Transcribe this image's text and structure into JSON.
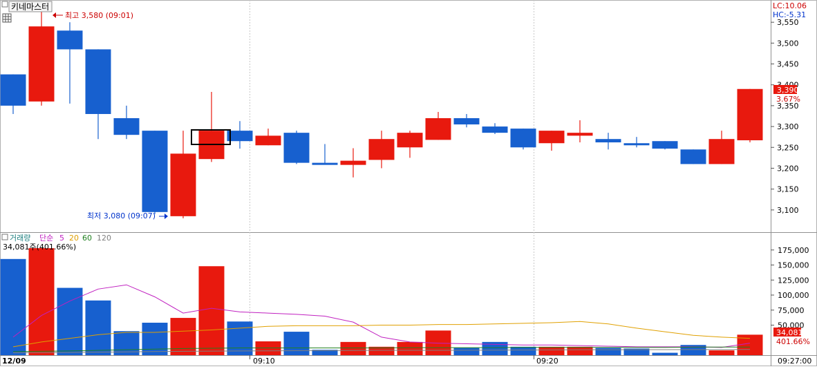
{
  "title": "키네마스터",
  "lc_label": "LC:10.06",
  "hc_label": "HC:-5.31",
  "high_annotation": "최고 3,580 (09:01)",
  "low_annotation": "최저 3,080 (09:07)",
  "current_price_label": "3,390",
  "current_change_label": "3.67%",
  "volume_legend": {
    "volume": "거래량",
    "simple": "단순",
    "ma5": "5",
    "ma20": "20",
    "ma60": "60",
    "ma120": "120"
  },
  "volume_info": "34,081주(401.66%)",
  "current_volume_label": "34,081",
  "current_volume_pct_label": "401.66%",
  "colors": {
    "up": "#e8190e",
    "down": "#1760cf",
    "ma5": "#c020c0",
    "ma20": "#e0a000",
    "ma60": "#208020",
    "ma120": "#808080",
    "axis_text_up": "#cc0000",
    "axis_text_down": "#0033cc"
  },
  "time_labels": {
    "date": "12/09",
    "t1": "09:10",
    "t2": "09:20",
    "end": "09:27:00"
  },
  "chart_data": [
    {
      "type": "candlestick",
      "y_ticks": [
        3550,
        3500,
        3450,
        3400,
        3350,
        3300,
        3250,
        3200,
        3150,
        3100
      ],
      "y_tick_labels": [
        "3,550",
        "3,500",
        "3,450",
        "3,400",
        "3,350",
        "3,300",
        "3,250",
        "3,200",
        "3,150",
        "3,100"
      ],
      "ylim": [
        3050,
        3600
      ],
      "candles": [
        {
          "o": 3425,
          "h": 3425,
          "l": 3330,
          "c": 3350
        },
        {
          "o": 3360,
          "h": 3580,
          "l": 3350,
          "c": 3540
        },
        {
          "o": 3530,
          "h": 3550,
          "l": 3355,
          "c": 3485
        },
        {
          "o": 3485,
          "h": 3485,
          "l": 3270,
          "c": 3330
        },
        {
          "o": 3320,
          "h": 3350,
          "l": 3270,
          "c": 3280
        },
        {
          "o": 3290,
          "h": 3290,
          "l": 3090,
          "c": 3095
        },
        {
          "o": 3085,
          "h": 3290,
          "l": 3080,
          "c": 3235
        },
        {
          "o": 3222,
          "h": 3383,
          "l": 3215,
          "c": 3290
        },
        {
          "o": 3290,
          "h": 3313,
          "l": 3247,
          "c": 3265
        },
        {
          "o": 3255,
          "h": 3295,
          "l": 3255,
          "c": 3278
        },
        {
          "o": 3285,
          "h": 3290,
          "l": 3210,
          "c": 3213
        },
        {
          "o": 3213,
          "h": 3258,
          "l": 3210,
          "c": 3208
        },
        {
          "o": 3208,
          "h": 3248,
          "l": 3178,
          "c": 3218
        },
        {
          "o": 3220,
          "h": 3290,
          "l": 3200,
          "c": 3270
        },
        {
          "o": 3250,
          "h": 3290,
          "l": 3225,
          "c": 3285
        },
        {
          "o": 3268,
          "h": 3335,
          "l": 3268,
          "c": 3320
        },
        {
          "o": 3320,
          "h": 3330,
          "l": 3298,
          "c": 3305
        },
        {
          "o": 3300,
          "h": 3308,
          "l": 3282,
          "c": 3285
        },
        {
          "o": 3295,
          "h": 3295,
          "l": 3245,
          "c": 3250
        },
        {
          "o": 3260,
          "h": 3290,
          "l": 3242,
          "c": 3290
        },
        {
          "o": 3278,
          "h": 3315,
          "l": 3262,
          "c": 3285
        },
        {
          "o": 3270,
          "h": 3285,
          "l": 3245,
          "c": 3262
        },
        {
          "o": 3260,
          "h": 3275,
          "l": 3250,
          "c": 3255
        },
        {
          "o": 3265,
          "h": 3265,
          "l": 3245,
          "c": 3247
        },
        {
          "o": 3245,
          "h": 3245,
          "l": 3210,
          "c": 3210
        },
        {
          "o": 3210,
          "h": 3290,
          "l": 3210,
          "c": 3270
        },
        {
          "o": 3267,
          "h": 3390,
          "l": 3262,
          "c": 3390
        }
      ]
    },
    {
      "type": "bar",
      "y_ticks": [
        175000,
        150000,
        125000,
        100000,
        75000,
        50000
      ],
      "y_tick_labels": [
        "175,000",
        "150,000",
        "125,000",
        "100,000",
        "75,000",
        "50,000"
      ],
      "ylim": [
        0,
        200000
      ],
      "volumes": [
        160000,
        178000,
        112000,
        91000,
        40000,
        54000,
        62000,
        148000,
        56000,
        23000,
        39000,
        9000,
        22000,
        14000,
        22000,
        41000,
        12000,
        22000,
        14000,
        14000,
        14000,
        12000,
        11000,
        4000,
        17000,
        8000,
        34081
      ],
      "series": [
        {
          "name": "5",
          "values": [
            30000,
            66000,
            90000,
            110000,
            117000,
            97000,
            70000,
            78000,
            72000,
            70000,
            68000,
            65000,
            55000,
            30000,
            22000,
            20000,
            19000,
            18000,
            17000,
            17000,
            16000,
            15000,
            14000,
            14000,
            14000,
            13000,
            20000
          ]
        },
        {
          "name": "20",
          "values": [
            14000,
            22000,
            28000,
            34000,
            38000,
            38000,
            40000,
            42000,
            45000,
            48000,
            49000,
            49000,
            49000,
            50000,
            50000,
            51000,
            51000,
            52000,
            53000,
            54000,
            56000,
            52000,
            45000,
            39000,
            33000,
            30000,
            28000
          ]
        },
        {
          "name": "60",
          "values": [
            6000,
            6500,
            7000,
            8000,
            9000,
            10000,
            11000,
            11500,
            12000,
            12000,
            12000,
            12000,
            12000,
            12000,
            12500,
            12500,
            12500,
            12500,
            13000,
            13000,
            13000,
            13000,
            13000,
            13000,
            13500,
            13500,
            13500
          ]
        },
        {
          "name": "120",
          "values": [
            4000,
            4200,
            4500,
            5000,
            5500,
            6000,
            6500,
            6800,
            7000,
            7200,
            7400,
            7600,
            7800,
            8000,
            8000,
            8000,
            8200,
            8400,
            8600,
            8800,
            9000,
            9000,
            9200,
            9200,
            9400,
            9400,
            9500
          ]
        }
      ]
    }
  ]
}
